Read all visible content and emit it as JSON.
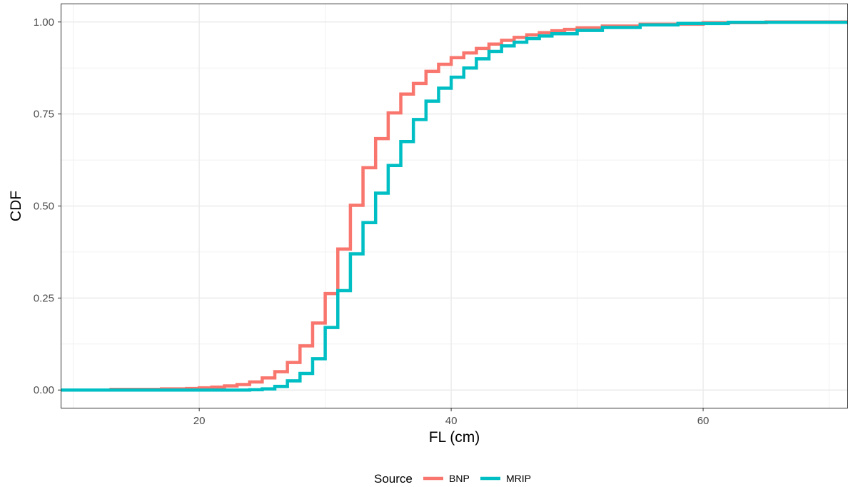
{
  "chart_data": {
    "type": "line",
    "step": true,
    "title": "",
    "xlabel": "FL (cm)",
    "ylabel": "CDF",
    "xlim": [
      9,
      71.5
    ],
    "ylim": [
      -0.05,
      1.05
    ],
    "x_ticks": [
      20,
      40,
      60
    ],
    "y_ticks": [
      0,
      0.25,
      0.5,
      0.75,
      1
    ],
    "y_tick_labels": [
      "0.00",
      "0.25",
      "0.50",
      "0.75",
      "1.00"
    ],
    "grid": true,
    "legend": {
      "title": "Source",
      "position": "bottom"
    },
    "series": [
      {
        "name": "BNP",
        "color": "#F8766D",
        "x": [
          9,
          13,
          17,
          19,
          20,
          21,
          22,
          23,
          24,
          25,
          26,
          27,
          28,
          29,
          30,
          31,
          32,
          33,
          34,
          35,
          36,
          37,
          38,
          39,
          40,
          41,
          42,
          43,
          44,
          45,
          46,
          47,
          48,
          49,
          50,
          52,
          55,
          60,
          65,
          71.5
        ],
        "y": [
          0,
          0.002,
          0.003,
          0.004,
          0.006,
          0.008,
          0.011,
          0.015,
          0.022,
          0.033,
          0.05,
          0.075,
          0.12,
          0.182,
          0.262,
          0.383,
          0.502,
          0.604,
          0.683,
          0.753,
          0.804,
          0.833,
          0.866,
          0.885,
          0.903,
          0.916,
          0.928,
          0.94,
          0.95,
          0.958,
          0.965,
          0.971,
          0.976,
          0.98,
          0.984,
          0.989,
          0.994,
          0.998,
          1.0,
          1.0
        ]
      },
      {
        "name": "MRIP",
        "color": "#00BFC4",
        "x": [
          9,
          22,
          24,
          25,
          26,
          27,
          28,
          29,
          30,
          31,
          32,
          33,
          34,
          35,
          36,
          37,
          38,
          39,
          40,
          41,
          42,
          43,
          44,
          45,
          46,
          47,
          48,
          50,
          52,
          55,
          58,
          62,
          71.5
        ],
        "y": [
          0,
          0.0,
          0.001,
          0.003,
          0.01,
          0.025,
          0.045,
          0.085,
          0.17,
          0.27,
          0.37,
          0.455,
          0.535,
          0.61,
          0.675,
          0.735,
          0.785,
          0.82,
          0.85,
          0.875,
          0.9,
          0.92,
          0.935,
          0.945,
          0.955,
          0.962,
          0.968,
          0.977,
          0.985,
          0.992,
          0.996,
          0.999,
          1.0
        ]
      }
    ]
  }
}
